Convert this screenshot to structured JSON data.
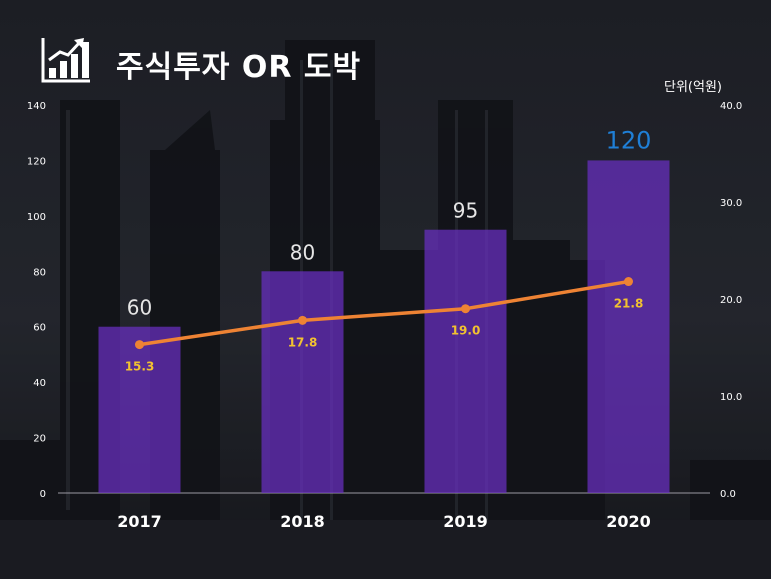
{
  "header": {
    "title": "주식투자 OR 도박",
    "unit_label": "단위(억원)",
    "icon": "bar-chart-growth-icon"
  },
  "chart_data": {
    "type": "bar",
    "categories": [
      "2017",
      "2018",
      "2019",
      "2020"
    ],
    "series": [
      {
        "name": "bar",
        "axis": "left",
        "values": [
          60,
          80,
          95,
          120
        ],
        "label_color": "#e6e6e6",
        "highlight_last_color": "#1f7fd6",
        "bar_color": "#6a2fc4"
      },
      {
        "name": "line",
        "type": "line",
        "axis": "right",
        "values": [
          15.3,
          17.8,
          19.0,
          21.8
        ],
        "labels": [
          "15.3",
          "17.8",
          "19.0",
          "21.8"
        ],
        "line_color": "#ee8334",
        "label_color": "#f2c230"
      }
    ],
    "left_axis": {
      "ylim": [
        0,
        140
      ],
      "ticks": [
        "0",
        "20",
        "40",
        "60",
        "80",
        "100",
        "120",
        "140"
      ]
    },
    "right_axis": {
      "ylim": [
        0,
        40
      ],
      "ticks": [
        "0.0",
        "10.0",
        "20.0",
        "30.0",
        "40.0"
      ]
    },
    "title": "주식투자 OR 도박",
    "xlabel": "",
    "ylabel": "단위(억원)",
    "grid": false
  }
}
